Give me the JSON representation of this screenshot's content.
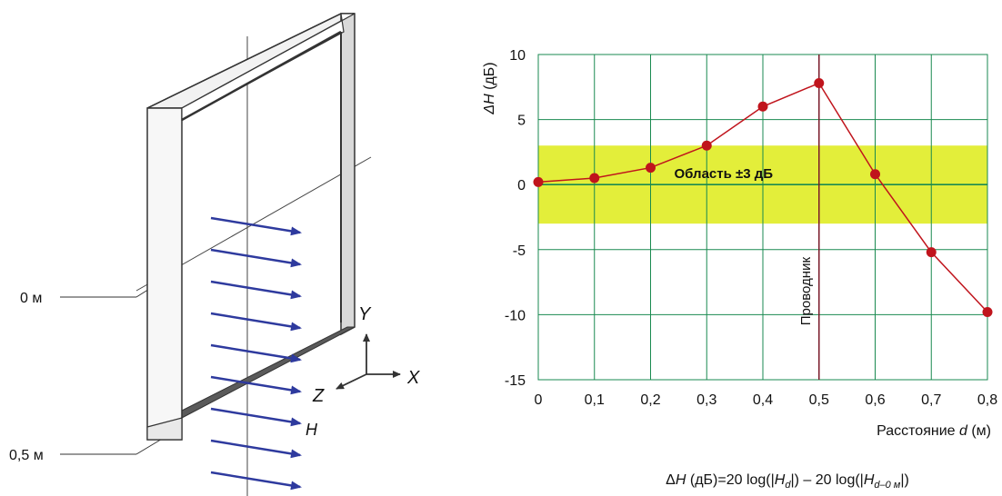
{
  "left_diagram": {
    "label_0m": "0 м",
    "label_05m": "0,5 м",
    "axis_y": "Y",
    "axis_x": "X",
    "axis_z": "Z",
    "field_label": "H",
    "arrow_color": "#2e3a9e",
    "frame_color": "#555555",
    "arrow_count": 10
  },
  "chart_data": {
    "type": "line",
    "ylabel_prefix": "ΔH",
    "ylabel_unit": " (дБ)",
    "xlabel_prefix": "Расстояние ",
    "xlabel_var": "d",
    "xlabel_unit": " (м)",
    "xlim": [
      0,
      0.8
    ],
    "ylim": [
      -15,
      10
    ],
    "xticks": [
      0,
      0.1,
      0.2,
      0.3,
      0.4,
      0.5,
      0.6,
      0.7,
      0.8
    ],
    "xtick_labels": [
      "0",
      "0,1",
      "0,2",
      "0,3",
      "0,4",
      "0,5",
      "0,6",
      "0,7",
      "0,8"
    ],
    "yticks": [
      10,
      5,
      0,
      -5,
      -10,
      -15
    ],
    "ytick_labels": [
      "10",
      "5",
      "0",
      "-5",
      "-10",
      "-15"
    ],
    "grid": true,
    "band": {
      "from": -3,
      "to": 3,
      "label": "Область ±3 дБ",
      "color": "#e3ee3a"
    },
    "conductor": {
      "x": 0.5,
      "label": "Проводник",
      "color": "#7a1a2a"
    },
    "series": [
      {
        "color": "#c0141c",
        "x": [
          0,
          0.1,
          0.2,
          0.3,
          0.4,
          0.5,
          0.6,
          0.7,
          0.8
        ],
        "y": [
          0.2,
          0.5,
          1.3,
          3.0,
          6.0,
          7.8,
          0.8,
          -5.2,
          -9.8
        ]
      }
    ],
    "grid_color": "#1a8a50"
  },
  "formula": {
    "p1": "Δ",
    "p2": "H",
    "p3": " (дБ)=20 log(|",
    "p4": "H",
    "p5": "d",
    "p6": "|) – 20 log(|",
    "p7": "H",
    "p8": "d–0 м",
    "p9": "|)"
  }
}
